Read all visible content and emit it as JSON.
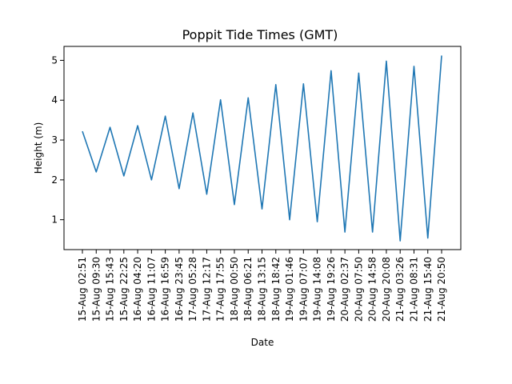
{
  "chart_data": {
    "type": "line",
    "title": "Poppit Tide Times (GMT)",
    "xlabel": "Date",
    "ylabel": "Height (m)",
    "ylim": [
      0.25,
      5.35
    ],
    "yticks": [
      1,
      2,
      3,
      4,
      5
    ],
    "grid": false,
    "line_color": "#1f77b4",
    "categories": [
      "15-Aug 02:51",
      "15-Aug 09:30",
      "15-Aug 15:43",
      "15-Aug 22:25",
      "16-Aug 04:20",
      "16-Aug 11:07",
      "16-Aug 16:59",
      "16-Aug 23:45",
      "17-Aug 05:28",
      "17-Aug 12:17",
      "17-Aug 17:55",
      "18-Aug 00:50",
      "18-Aug 06:21",
      "18-Aug 13:15",
      "18-Aug 18:42",
      "19-Aug 01:46",
      "19-Aug 07:07",
      "19-Aug 14:08",
      "19-Aug 19:26",
      "20-Aug 02:37",
      "20-Aug 07:50",
      "20-Aug 14:58",
      "20-Aug 20:08",
      "21-Aug 03:26",
      "21-Aug 08:31",
      "21-Aug 15:40",
      "21-Aug 20:50"
    ],
    "series": [
      {
        "values": [
          3.22,
          2.2,
          3.32,
          2.1,
          3.36,
          2.0,
          3.6,
          1.78,
          3.68,
          1.64,
          4.01,
          1.38,
          4.06,
          1.27,
          4.39,
          1.0,
          4.41,
          0.95,
          4.74,
          0.69,
          4.68,
          0.69,
          4.98,
          0.47,
          4.85,
          0.54,
          5.12
        ]
      }
    ]
  }
}
